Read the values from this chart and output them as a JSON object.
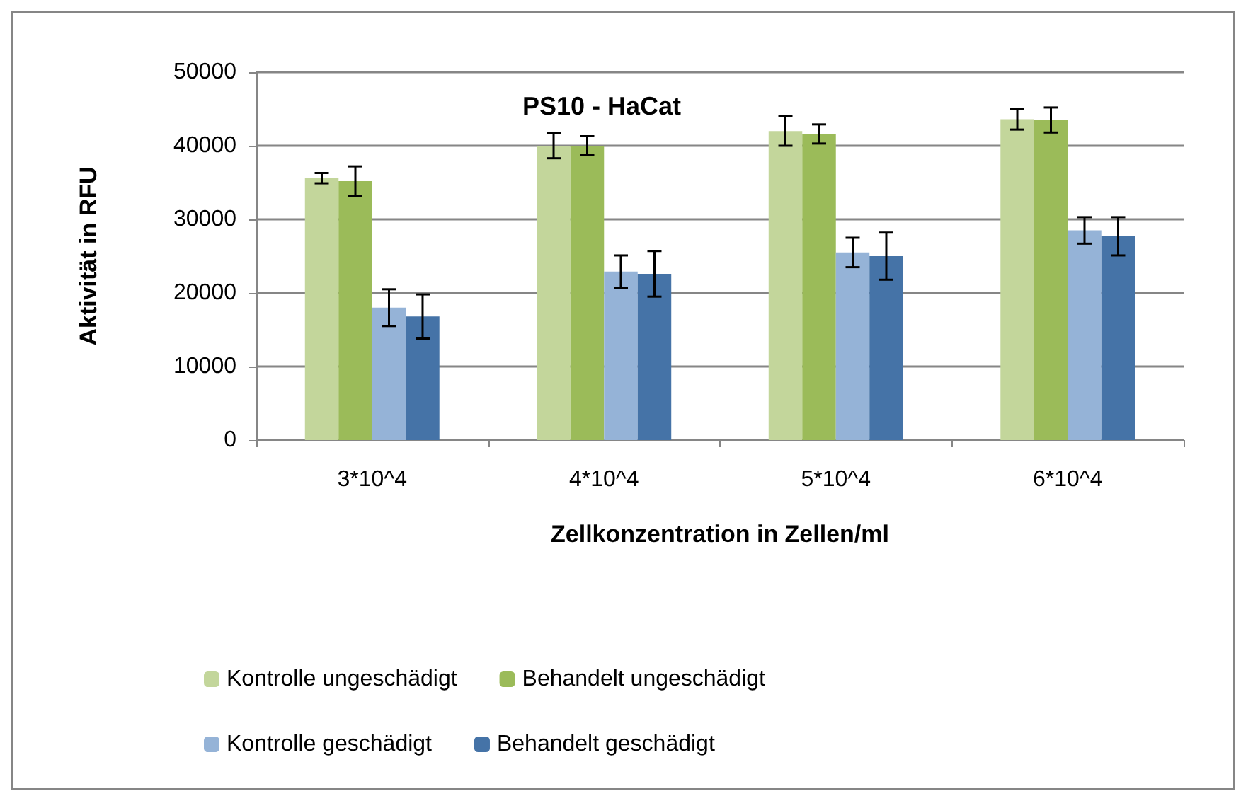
{
  "chart_data": {
    "type": "bar",
    "title": "PS10 - HaCat",
    "xlabel": "Zellkonzentration in Zellen/ml",
    "ylabel": "Aktivität in RFU",
    "categories": [
      "3*10^4",
      "4*10^4",
      "5*10^4",
      "6*10^4"
    ],
    "series": [
      {
        "name": "Kontrolle ungeschädigt",
        "color": "#c3d69b",
        "values": [
          35600,
          40000,
          42000,
          43600
        ],
        "errors": [
          700,
          1700,
          2000,
          1400
        ]
      },
      {
        "name": "Behandelt ungeschädigt",
        "color": "#9bbb59",
        "values": [
          35200,
          40000,
          41600,
          43500
        ],
        "errors": [
          2000,
          1300,
          1300,
          1700
        ]
      },
      {
        "name": "Kontrolle geschädigt",
        "color": "#95b3d7",
        "values": [
          18000,
          22900,
          25500,
          28500
        ],
        "errors": [
          2500,
          2200,
          2000,
          1800
        ]
      },
      {
        "name": "Behandelt geschädigt",
        "color": "#4573a7",
        "values": [
          16800,
          22600,
          25000,
          27700
        ],
        "errors": [
          3000,
          3100,
          3200,
          2600
        ]
      }
    ],
    "ylim": [
      0,
      50000
    ],
    "yticks": [
      0,
      10000,
      20000,
      30000,
      40000,
      50000
    ],
    "grid": "y",
    "legend": "bottom"
  }
}
